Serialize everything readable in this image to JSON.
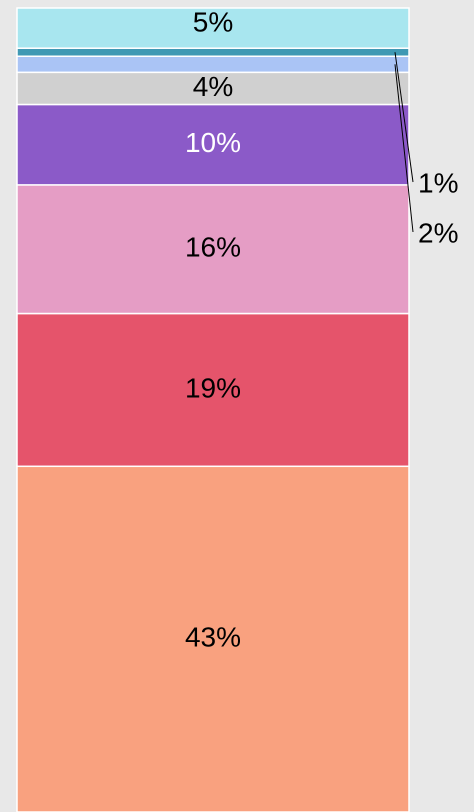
{
  "chart_data": {
    "type": "bar",
    "stacked": true,
    "values": [
      43,
      19,
      16,
      10,
      4,
      2,
      1,
      5
    ],
    "value_labels": [
      "43%",
      "19%",
      "16%",
      "10%",
      "4%",
      "2%",
      "1%",
      "5%"
    ],
    "colors": [
      "#f9a17f",
      "#e5546b",
      "#e59dc5",
      "#8b5ac8",
      "#d0d0d0",
      "#aac4f5",
      "#3f99b4",
      "#a8e6ef"
    ],
    "label_colors": [
      "#000000",
      "#000000",
      "#000000",
      "#ffffff",
      "#000000",
      "#000000",
      "#000000",
      "#000000"
    ]
  }
}
